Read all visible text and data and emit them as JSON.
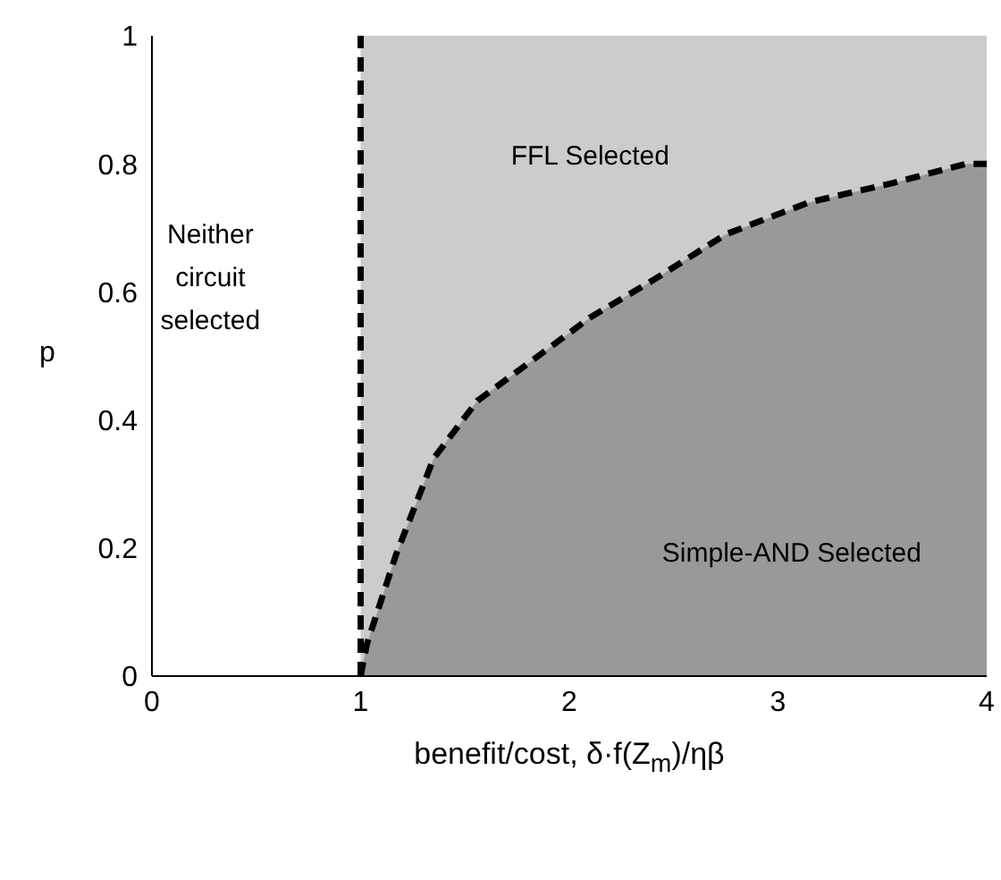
{
  "chart_data": {
    "type": "area",
    "xlabel": "benefit/cost, δ·f(Z$_{m}$)/ηβ",
    "ylabel": "p",
    "x": [
      1,
      1.03,
      1.17,
      1.35,
      1.56,
      1.81,
      2.1,
      2.41,
      2.75,
      3.15,
      3.55,
      3.9,
      4
    ],
    "series": [
      {
        "color": "#999999",
        "values": [
          0,
          0.05,
          0.19,
          0.34,
          0.43,
          0.49,
          0.56,
          0.62,
          0.69,
          0.74,
          0.77,
          0.8,
          0.8
        ]
      }
    ],
    "line_style": "dashed",
    "xlim": [
      0,
      4
    ],
    "xticks": [
      0,
      1,
      2,
      3,
      4
    ],
    "ylim": [
      0,
      1
    ],
    "yticks": [
      0,
      0.2,
      0.4,
      0.6,
      0.8,
      1
    ],
    "bands": [
      {
        "axis": "x",
        "from": 1,
        "to": 4,
        "color": "#cccccc"
      }
    ],
    "ref_lines": [
      {
        "axis": "x",
        "value": 1,
        "line_style": "dashed"
      }
    ],
    "annotations": [
      "Neither circuit selected",
      "FFL Selected",
      "Simple-AND Selected"
    ]
  }
}
